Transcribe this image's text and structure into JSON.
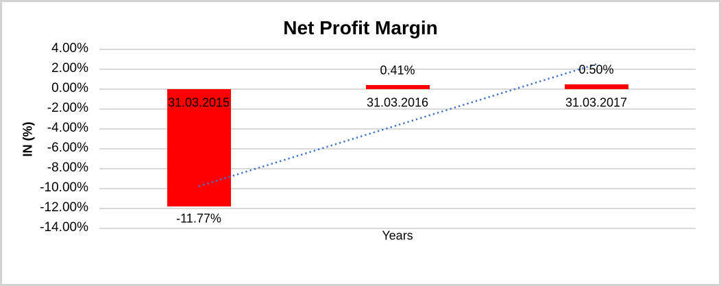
{
  "chart_data": {
    "type": "bar",
    "title": "Net Profit Margin",
    "xlabel": "Years",
    "ylabel": "IN (%)",
    "categories": [
      "31.03.2015",
      "31.03.2016",
      "31.03.2017"
    ],
    "values": [
      -11.77,
      0.41,
      0.5
    ],
    "data_labels": [
      "-11.77%",
      "0.41%",
      "0.50%"
    ],
    "ylim": [
      -14,
      4
    ],
    "ytick_step": 2,
    "ytick_labels": [
      "4.00%",
      "2.00%",
      "0.00%",
      "-2.00%",
      "-4.00%",
      "-6.00%",
      "-8.00%",
      "-10.00%",
      "-12.00%",
      "-14.00%"
    ],
    "grid": true,
    "legend": "none",
    "bar_color": "#FF0000",
    "gridline_color": "#D9D9D9",
    "trendline": {
      "type": "linear",
      "style": "dotted",
      "color": "#4472C4",
      "start_value": -9.76,
      "end_value": 2.52
    }
  }
}
